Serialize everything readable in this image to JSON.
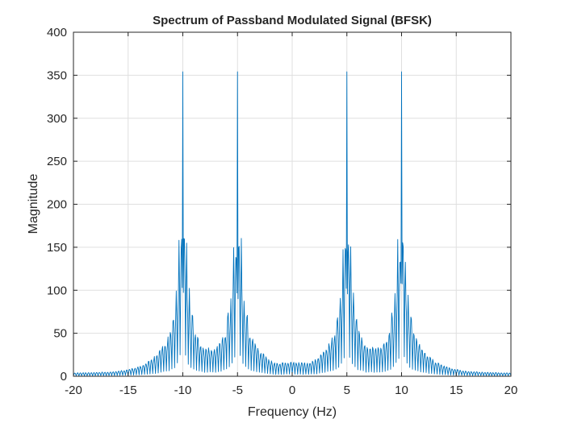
{
  "chart_data": {
    "type": "line",
    "title": "Spectrum of Passband Modulated Signal (BFSK)",
    "xlabel": "Frequency (Hz)",
    "ylabel": "Magnitude",
    "xlim": [
      -20,
      20
    ],
    "ylim": [
      0,
      400
    ],
    "xticks": [
      -20,
      -15,
      -10,
      -5,
      0,
      5,
      10,
      15,
      20
    ],
    "yticks": [
      0,
      50,
      100,
      150,
      200,
      250,
      300,
      350,
      400
    ],
    "grid": true,
    "box": true,
    "series": [
      {
        "name": "Magnitude",
        "color": "#0072BD",
        "peaks": [
          {
            "f": -10,
            "height": 354,
            "side_lobe_1": 168,
            "side_lobe_2": 78
          },
          {
            "f": -5,
            "height": 354,
            "side_lobe_1": 168,
            "side_lobe_2": 78
          },
          {
            "f": 5,
            "height": 354,
            "side_lobe_1": 168,
            "side_lobe_2": 78
          },
          {
            "f": 10,
            "height": 354,
            "side_lobe_1": 168,
            "side_lobe_2": 78
          }
        ],
        "lobe_spacing_hz": 0.25,
        "sample_spacing_hz": 0.05,
        "noise_floor": 2,
        "mid_region_level": 36
      }
    ]
  }
}
